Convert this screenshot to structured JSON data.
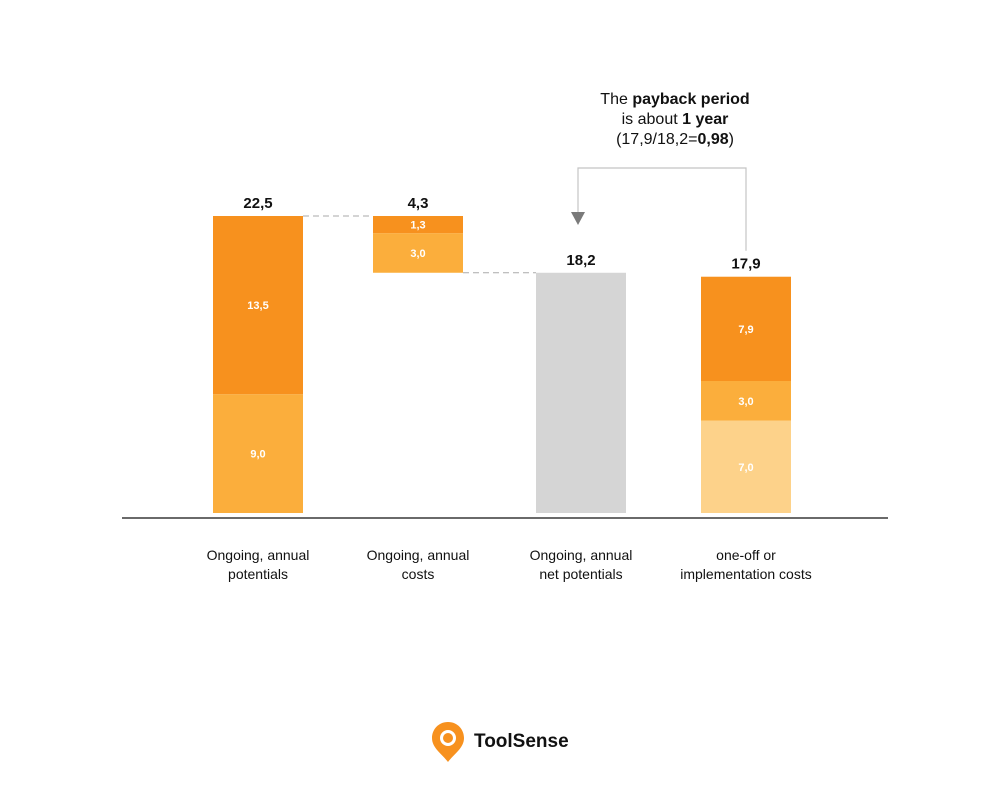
{
  "chart_data": {
    "type": "bar",
    "variant": "waterfall",
    "title": "",
    "xlabel": "",
    "ylabel": "",
    "ylim": [
      0,
      25
    ],
    "grid": false,
    "categories": [
      [
        "Ongoing, annual",
        "potentials"
      ],
      [
        "Ongoing, annual",
        "costs"
      ],
      [
        "Ongoing, annual",
        "net potentials"
      ],
      [
        "one-off or",
        "implementation costs"
      ]
    ],
    "bars": [
      {
        "total_label": "22,5",
        "base": 0,
        "segments": [
          {
            "value": 9.0,
            "label": "9,0",
            "color": "#FBAE3C"
          },
          {
            "value": 13.5,
            "label": "13,5",
            "color": "#F7911E"
          }
        ]
      },
      {
        "total_label": "4,3",
        "base": 18.2,
        "segments": [
          {
            "value": 3.0,
            "label": "3,0",
            "color": "#FBAE3C"
          },
          {
            "value": 1.3,
            "label": "1,3",
            "color": "#F7911E"
          }
        ]
      },
      {
        "total_label": "18,2",
        "base": 0,
        "segments": [
          {
            "value": 18.2,
            "label": "",
            "color": "#D5D5D5"
          }
        ]
      },
      {
        "total_label": "17,9",
        "base": 0,
        "segments": [
          {
            "value": 7.0,
            "label": "7,0",
            "color": "#FDD28A"
          },
          {
            "value": 3.0,
            "label": "3,0",
            "color": "#FBAE3C"
          },
          {
            "value": 7.9,
            "label": "7,9",
            "color": "#F7911E"
          }
        ]
      }
    ],
    "annotation": {
      "lines": [
        [
          {
            "t": "The "
          },
          {
            "t": "payback period",
            "b": true
          }
        ],
        [
          {
            "t": "is about "
          },
          {
            "t": "1 year",
            "b": true
          }
        ],
        [
          {
            "t": "(17,9/18,2="
          },
          {
            "t": "0,98",
            "b": true
          },
          {
            "t": ")"
          }
        ]
      ]
    }
  },
  "brand": {
    "name": "ToolSense",
    "color": "#F7911E",
    "icon": "location-pin-icon"
  }
}
